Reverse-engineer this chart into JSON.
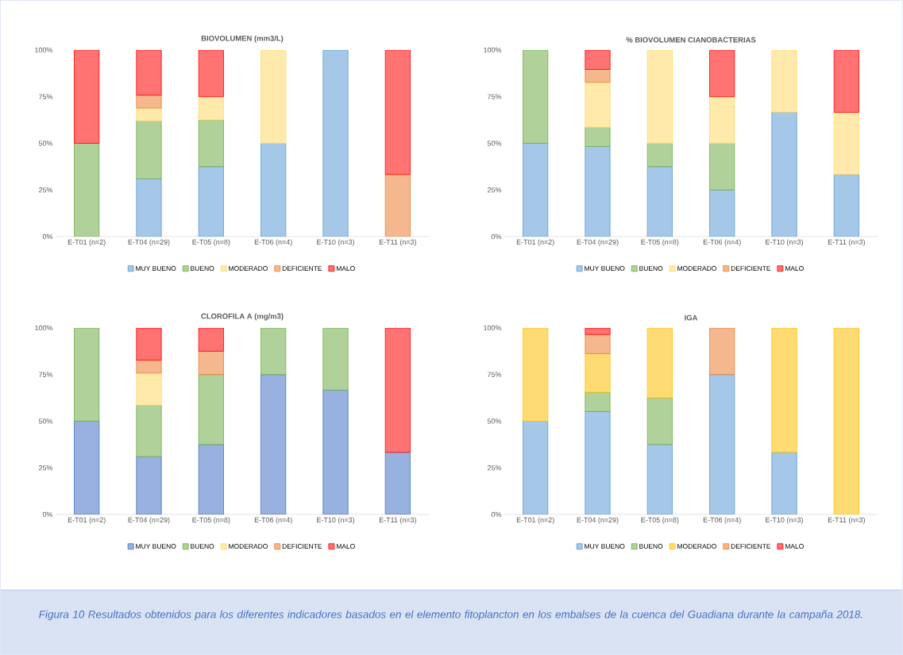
{
  "chart_data": [
    {
      "type": "bar",
      "stacked": true,
      "title": "BIOVOLUMEN (mm3/L)",
      "legend": "bottom",
      "categories": [
        "E-T01 (n=2)",
        "E-T04 (n=29)",
        "E-T05 (n=8)",
        "E-T06 (n=4)",
        "E-T10 (n=3)",
        "E-T11 (n=3)"
      ],
      "ylim": [
        0,
        100
      ],
      "yticks": [
        {
          "value": 0,
          "label": "0%"
        },
        {
          "value": 25,
          "label": "25%"
        },
        {
          "value": 50,
          "label": "50%"
        },
        {
          "value": 75,
          "label": "75%"
        },
        {
          "value": 100,
          "label": "100%"
        }
      ],
      "series": [
        {
          "name": "MUY BUENO",
          "color": "#5b9bd5",
          "values": [
            0,
            31.0,
            37.5,
            50,
            100,
            0
          ]
        },
        {
          "name": "BUENO",
          "color": "#70ad47",
          "values": [
            50,
            31.0,
            25,
            0,
            0,
            0
          ]
        },
        {
          "name": "MODERADO",
          "color": "#ffd966",
          "values": [
            0,
            6.9,
            12.5,
            50,
            0,
            0
          ]
        },
        {
          "name": "DEFICIENTE",
          "color": "#ed7d31",
          "values": [
            0,
            6.9,
            0,
            0,
            0,
            33.3
          ]
        },
        {
          "name": "MALO",
          "color": "#ff0000",
          "values": [
            50,
            24.1,
            25,
            0,
            0,
            66.7
          ]
        }
      ]
    },
    {
      "type": "bar",
      "stacked": true,
      "title": "% BIOVOLUMEN CIANOBACTERIAS",
      "legend": "bottom",
      "categories": [
        "E-T01 (n=2)",
        "E-T04 (n=29)",
        "E-T05 (n=8)",
        "E-T06 (n=4)",
        "E-T10 (n=3)",
        "E-T11 (n=3)"
      ],
      "ylim": [
        0,
        100
      ],
      "yticks": [
        {
          "value": 0,
          "label": "0%"
        },
        {
          "value": 25,
          "label": "25%"
        },
        {
          "value": 50,
          "label": "50%"
        },
        {
          "value": 75,
          "label": "75%"
        },
        {
          "value": 100,
          "label": "100%"
        }
      ],
      "series": [
        {
          "name": "MUY BUENO",
          "color": "#5b9bd5",
          "values": [
            50,
            48.3,
            37.5,
            25,
            66.7,
            33.3
          ]
        },
        {
          "name": "BUENO",
          "color": "#70ad47",
          "values": [
            50,
            10.3,
            12.5,
            25,
            0,
            0
          ]
        },
        {
          "name": "MODERADO",
          "color": "#ffd966",
          "values": [
            0,
            24.1,
            50,
            25,
            33.3,
            33.3
          ]
        },
        {
          "name": "DEFICIENTE",
          "color": "#ed7d31",
          "values": [
            0,
            6.9,
            0,
            0,
            0,
            0
          ]
        },
        {
          "name": "MALO",
          "color": "#ff0000",
          "values": [
            0,
            10.3,
            0,
            25,
            0,
            33.3
          ]
        }
      ]
    },
    {
      "type": "bar",
      "stacked": true,
      "title": "CLOROFILA A (mg/m3)",
      "legend": "bottom",
      "categories": [
        "E-T01 (n=2)",
        "E-T04 (n=29)",
        "E-T05 (n=8)",
        "E-T06 (n=4)",
        "E-T10 (n=3)",
        "E-T11 (n=3)"
      ],
      "ylim": [
        0,
        100
      ],
      "yticks": [
        {
          "value": 0,
          "label": "0%"
        },
        {
          "value": 25,
          "label": "25%"
        },
        {
          "value": 50,
          "label": "50%"
        },
        {
          "value": 75,
          "label": "75%"
        },
        {
          "value": 100,
          "label": "100%"
        }
      ],
      "series": [
        {
          "name": "MUY BUENO",
          "color": "#4472c4",
          "values": [
            50,
            31.0,
            37.5,
            75,
            66.7,
            33.3
          ]
        },
        {
          "name": "BUENO",
          "color": "#70ad47",
          "values": [
            50,
            27.6,
            37.5,
            25,
            33.3,
            0
          ]
        },
        {
          "name": "MODERADO",
          "color": "#ffd966",
          "values": [
            0,
            17.2,
            0,
            0,
            0,
            0
          ]
        },
        {
          "name": "DEFICIENTE",
          "color": "#ed7d31",
          "values": [
            0,
            6.9,
            12.5,
            0,
            0,
            0
          ]
        },
        {
          "name": "MALO",
          "color": "#ff0000",
          "values": [
            0,
            17.2,
            12.5,
            0,
            0,
            66.7
          ]
        }
      ]
    },
    {
      "type": "bar",
      "stacked": true,
      "title": "IGA",
      "legend": "bottom",
      "categories": [
        "E-T01 (n=2)",
        "E-T04 (n=29)",
        "E-T05 (n=8)",
        "E-T06 (n=4)",
        "E-T10 (n=3)",
        "E-T11 (n=3)"
      ],
      "ylim": [
        0,
        100
      ],
      "yticks": [
        {
          "value": 0,
          "label": "0%"
        },
        {
          "value": 25,
          "label": "25%"
        },
        {
          "value": 50,
          "label": "50%"
        },
        {
          "value": 75,
          "label": "75%"
        },
        {
          "value": 100,
          "label": "100%"
        }
      ],
      "series": [
        {
          "name": "MUY BUENO",
          "color": "#5b9bd5",
          "values": [
            50,
            55.2,
            37.5,
            75,
            33.3,
            0
          ]
        },
        {
          "name": "BUENO",
          "color": "#70ad47",
          "values": [
            0,
            10.3,
            25,
            0,
            0,
            0
          ]
        },
        {
          "name": "MODERADO",
          "color": "#ffc000",
          "values": [
            50,
            20.7,
            37.5,
            0,
            66.7,
            100
          ]
        },
        {
          "name": "DEFICIENTE",
          "color": "#ed7d31",
          "values": [
            0,
            10.3,
            0,
            25,
            0,
            0
          ]
        },
        {
          "name": "MALO",
          "color": "#ff0000",
          "values": [
            0,
            3.4,
            0,
            0,
            0,
            0
          ]
        }
      ],
      "annotations": [
        "*Figura 10 Resultados obtenidos para los diferentes indicadores basados en el elemento fitoplancton en los embalses de la cuenca del Guadiana durante la campaña 2018.*"
      ]
    }
  ]
}
